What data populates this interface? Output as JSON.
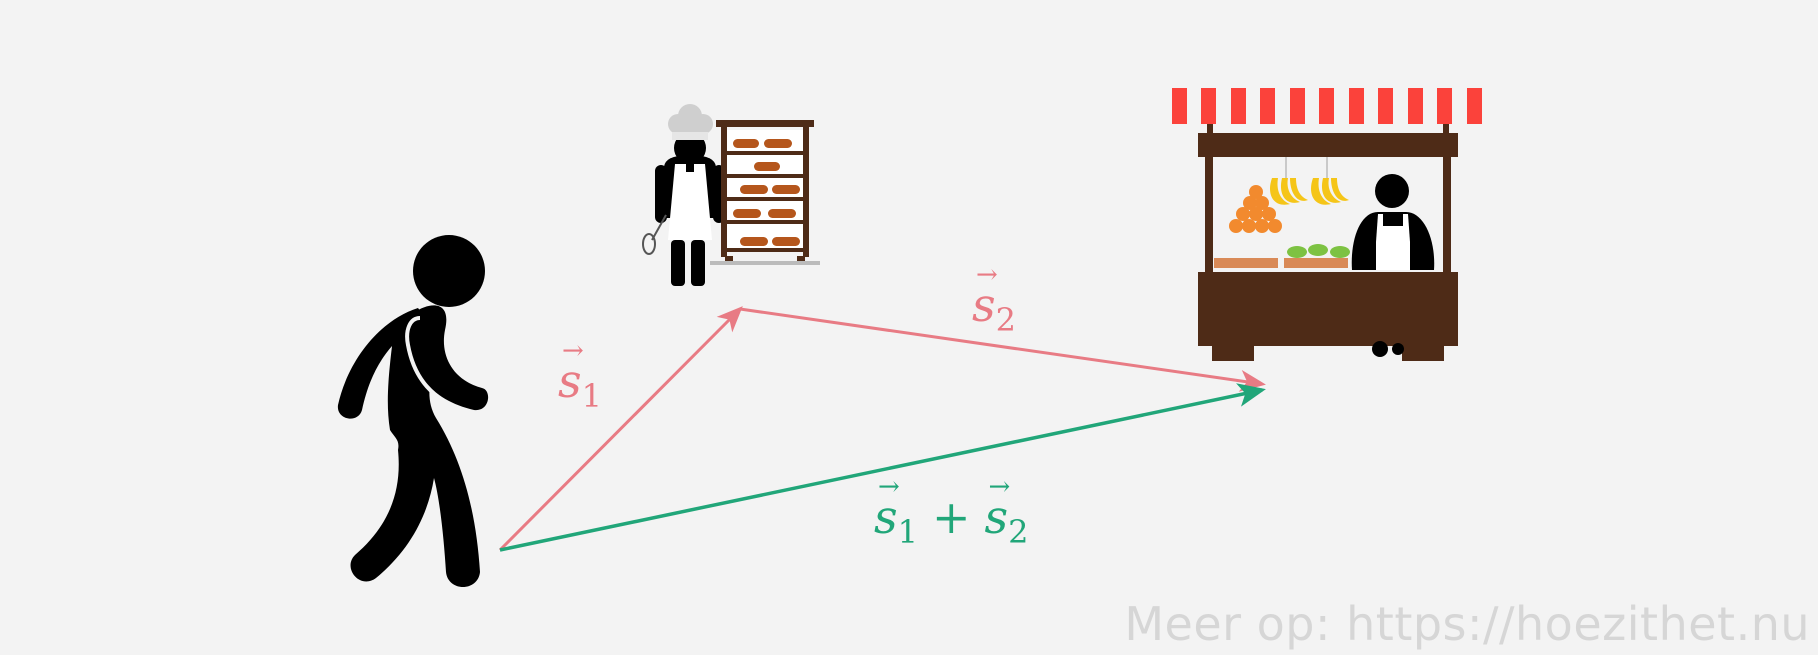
{
  "labels": {
    "s1": {
      "symbol": "s",
      "sub": "1",
      "arrow": "→"
    },
    "s2": {
      "symbol": "s",
      "sub": "2",
      "arrow": "→"
    },
    "sum": {
      "s1_symbol": "s",
      "s1_sub": "1",
      "plus": "+",
      "s2_symbol": "s",
      "s2_sub": "2",
      "arrow": "→"
    }
  },
  "watermark": "Meer op: https://hoezithet.nu",
  "colors": {
    "background": "#f3f3f3",
    "vector_pink": "#e87b84",
    "vector_green": "#21a679",
    "figure": "#000000",
    "wood": "#4e2b17",
    "awning_red": "#fb423b",
    "bread": "#b5561c",
    "orange": "#f28a2e",
    "banana": "#f5c518",
    "lime": "#7dc242",
    "crate": "#d98a57",
    "watermark": "#d6d6d6"
  },
  "icons": [
    "walking-person-icon",
    "baker-icon",
    "bread-rack-icon",
    "market-stall-icon",
    "vendor-icon"
  ]
}
